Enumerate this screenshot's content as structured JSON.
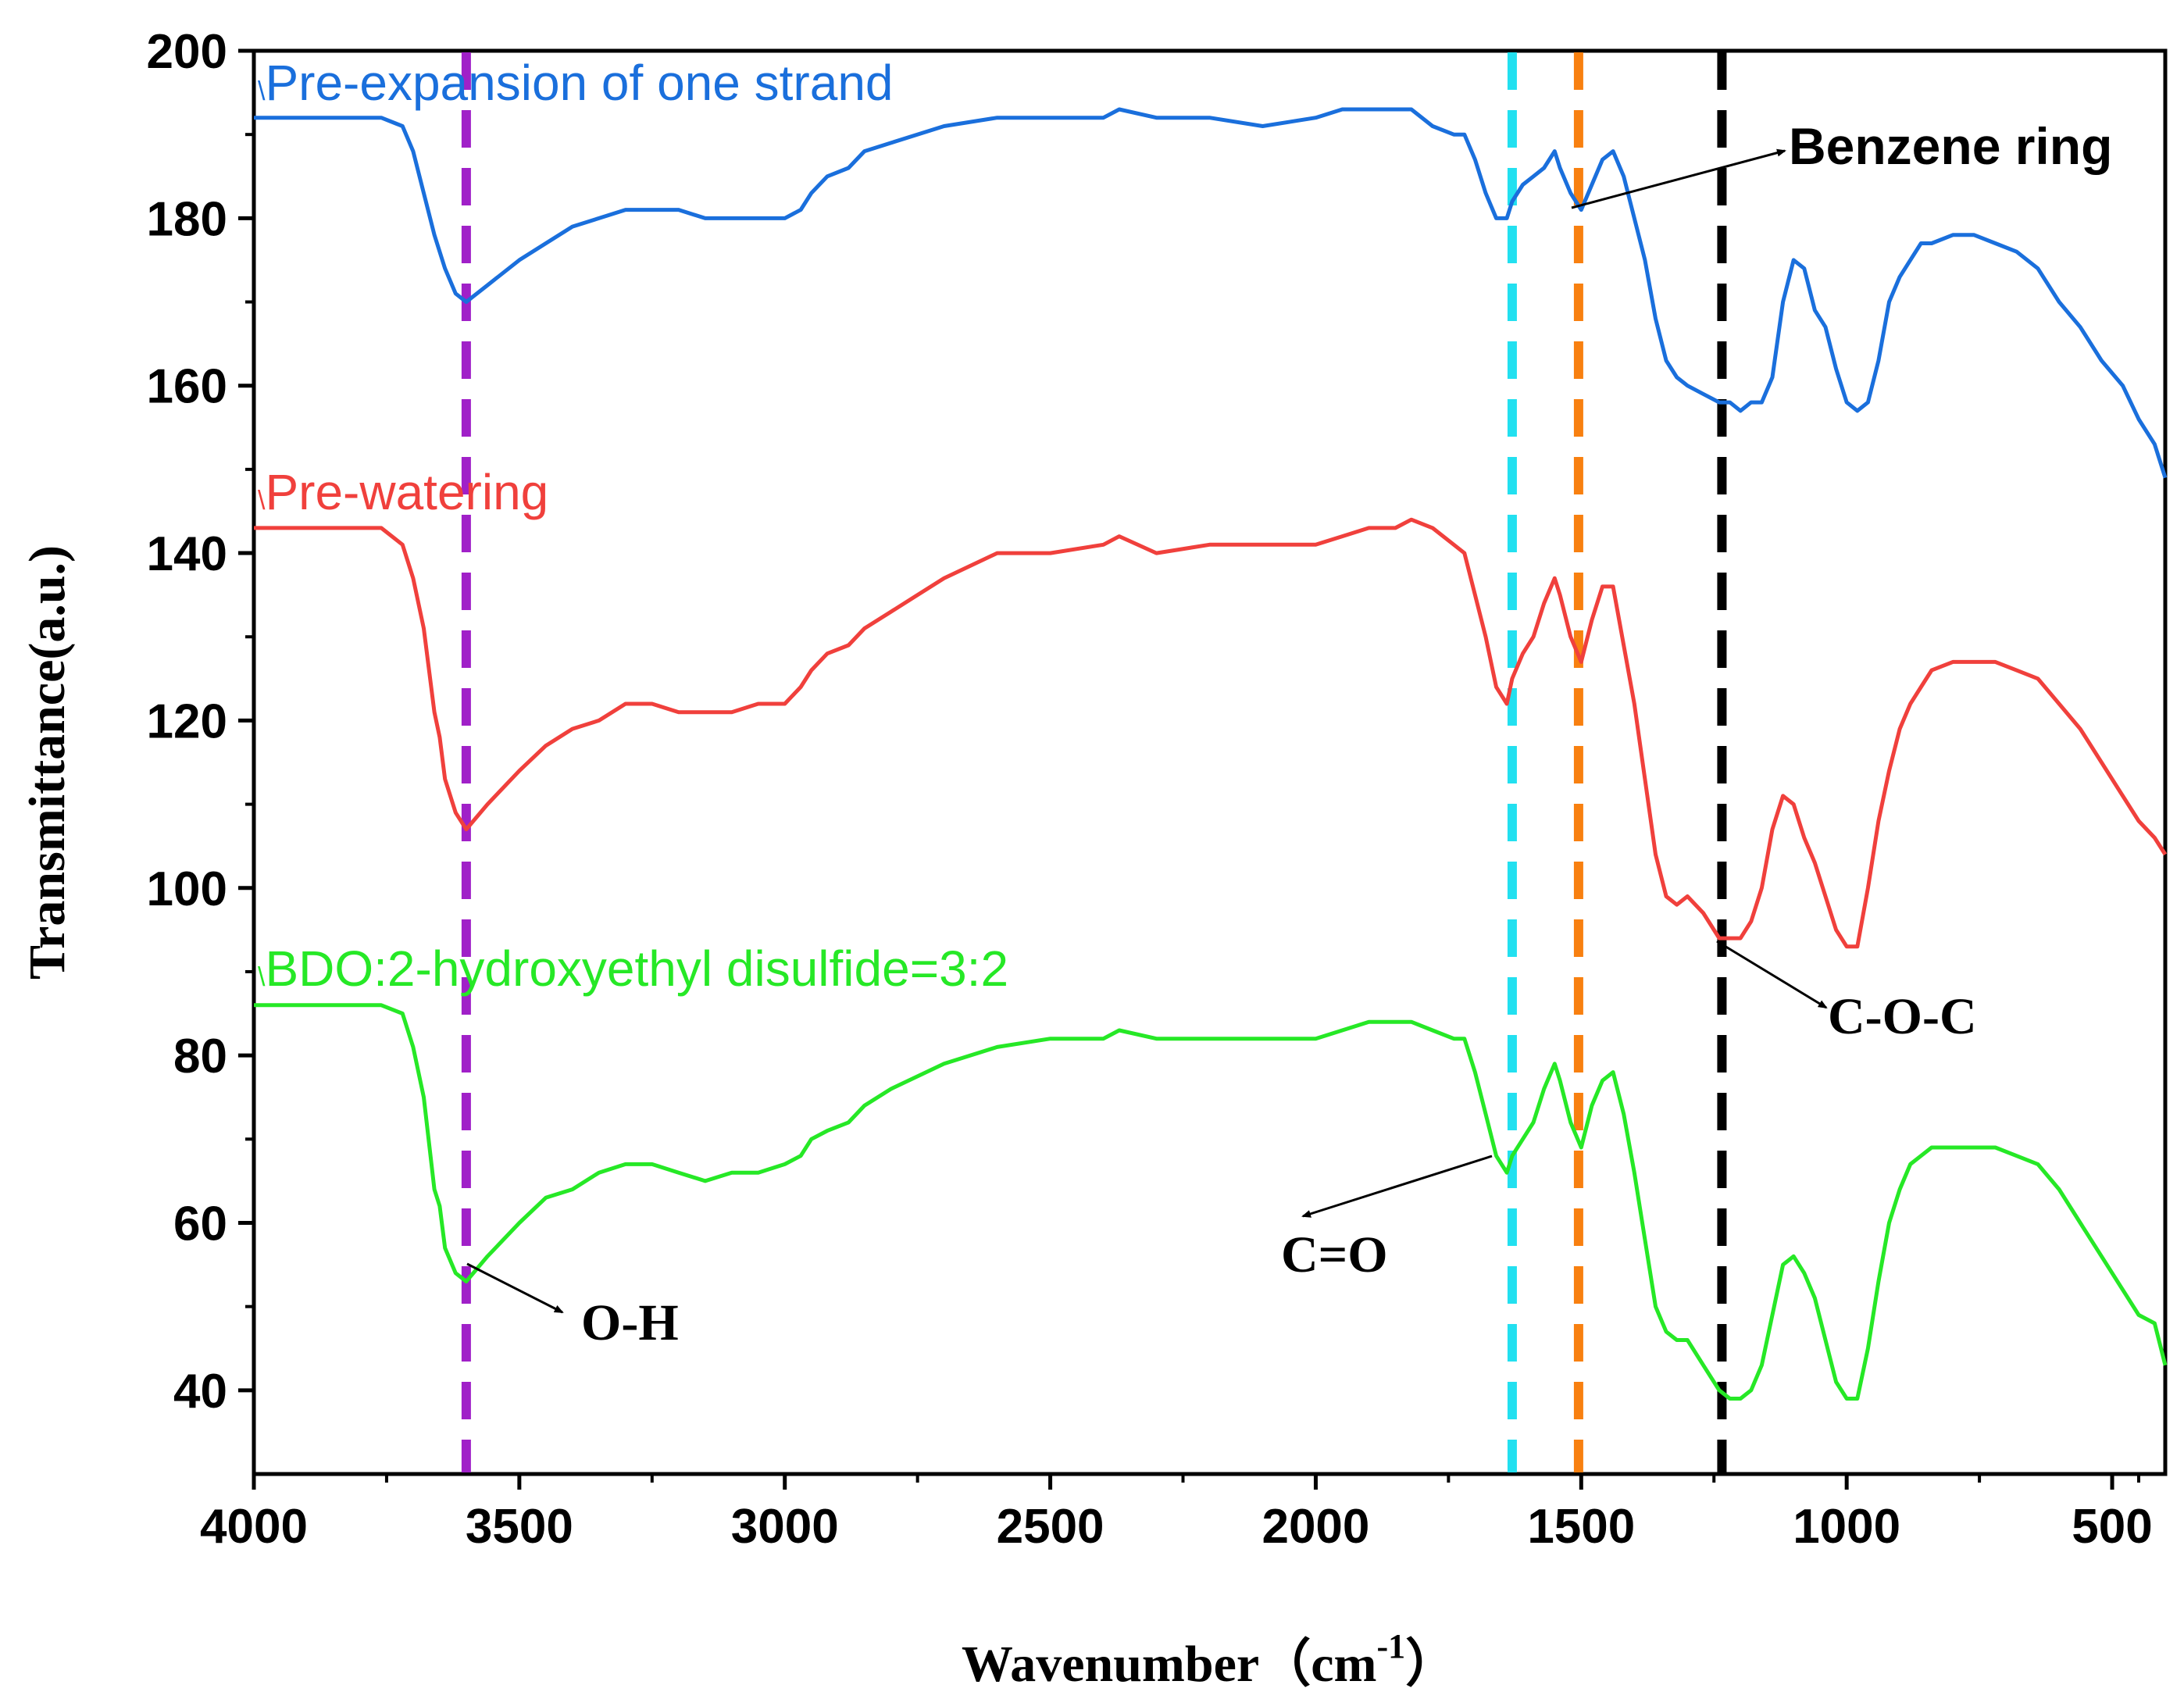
{
  "chart_data": {
    "type": "line",
    "title": "",
    "xlabel": "Wavenumber（cm",
    "xlabel_sup": "-1",
    "xlabel_close": "）",
    "ylabel": "Transmittance(a.u.)",
    "xlim": [
      4000,
      400
    ],
    "ylim": [
      30,
      200
    ],
    "x_ticks": [
      4000,
      3500,
      3000,
      2500,
      2000,
      1500,
      1000,
      500
    ],
    "x_tick_labels": [
      "4000",
      "3500",
      "3000",
      "2500",
      "2000",
      "1500",
      "1000",
      "500"
    ],
    "y_ticks": [
      40,
      60,
      80,
      100,
      120,
      140,
      160,
      180,
      200
    ],
    "y_tick_labels": [
      "40",
      "60",
      "80",
      "100",
      "120",
      "140",
      "160",
      "180",
      "200"
    ],
    "grid": false,
    "series": [
      {
        "name": "Pre-expansion of one strand",
        "color": "#1a6fdc",
        "x": [
          4000,
          3900,
          3800,
          3760,
          3720,
          3700,
          3680,
          3660,
          3650,
          3640,
          3620,
          3600,
          3560,
          3500,
          3450,
          3400,
          3350,
          3300,
          3250,
          3200,
          3150,
          3100,
          3050,
          3000,
          2970,
          2950,
          2920,
          2880,
          2850,
          2800,
          2700,
          2600,
          2500,
          2400,
          2370,
          2300,
          2200,
          2100,
          2000,
          1950,
          1900,
          1850,
          1820,
          1780,
          1740,
          1720,
          1700,
          1680,
          1660,
          1640,
          1630,
          1610,
          1590,
          1570,
          1550,
          1540,
          1520,
          1500,
          1480,
          1460,
          1440,
          1420,
          1400,
          1380,
          1360,
          1340,
          1320,
          1300,
          1270,
          1240,
          1220,
          1200,
          1180,
          1160,
          1140,
          1120,
          1100,
          1080,
          1060,
          1040,
          1020,
          1000,
          980,
          960,
          940,
          920,
          900,
          880,
          860,
          840,
          800,
          760,
          720,
          680,
          640,
          600,
          560,
          520,
          480,
          450,
          420,
          400
        ],
        "y": [
          192,
          192,
          192,
          192,
          191,
          188,
          183,
          178,
          176,
          174,
          171,
          170,
          172,
          175,
          177,
          179,
          180,
          181,
          181,
          181,
          180,
          180,
          180,
          180,
          181,
          183,
          185,
          186,
          188,
          189,
          191,
          192,
          192,
          192,
          193,
          192,
          192,
          191,
          192,
          193,
          193,
          193,
          193,
          191,
          190,
          190,
          187,
          183,
          180,
          180,
          182,
          184,
          185,
          186,
          188,
          186,
          183,
          181,
          184,
          187,
          188,
          185,
          180,
          175,
          168,
          163,
          161,
          160,
          159,
          158,
          158,
          157,
          158,
          158,
          161,
          170,
          175,
          174,
          169,
          167,
          162,
          158,
          157,
          158,
          163,
          170,
          173,
          175,
          177,
          177,
          178,
          178,
          177,
          176,
          174,
          170,
          167,
          163,
          160,
          156,
          153,
          149
        ]
      },
      {
        "name": "Pre-watering",
        "color": "#f0403c",
        "x": [
          4000,
          3900,
          3800,
          3760,
          3720,
          3700,
          3680,
          3660,
          3650,
          3640,
          3620,
          3600,
          3560,
          3500,
          3450,
          3400,
          3350,
          3300,
          3250,
          3200,
          3150,
          3100,
          3050,
          3000,
          2970,
          2950,
          2920,
          2880,
          2850,
          2800,
          2700,
          2600,
          2500,
          2400,
          2370,
          2300,
          2200,
          2100,
          2000,
          1950,
          1900,
          1850,
          1820,
          1780,
          1740,
          1720,
          1700,
          1680,
          1660,
          1640,
          1630,
          1610,
          1590,
          1570,
          1550,
          1540,
          1520,
          1500,
          1480,
          1460,
          1440,
          1420,
          1400,
          1380,
          1360,
          1340,
          1320,
          1300,
          1270,
          1240,
          1220,
          1200,
          1180,
          1160,
          1140,
          1120,
          1100,
          1080,
          1060,
          1040,
          1020,
          1000,
          980,
          960,
          940,
          920,
          900,
          880,
          860,
          840,
          800,
          760,
          720,
          680,
          640,
          600,
          560,
          520,
          480,
          450,
          420,
          400
        ],
        "y": [
          143,
          143,
          143,
          143,
          141,
          137,
          131,
          121,
          118,
          113,
          109,
          107,
          110,
          114,
          117,
          119,
          120,
          122,
          122,
          121,
          121,
          121,
          122,
          122,
          124,
          126,
          128,
          129,
          131,
          133,
          137,
          140,
          140,
          141,
          142,
          140,
          141,
          141,
          141,
          142,
          143,
          143,
          144,
          143,
          141,
          140,
          135,
          130,
          124,
          122,
          125,
          128,
          130,
          134,
          137,
          135,
          130,
          127,
          132,
          136,
          136,
          129,
          122,
          113,
          104,
          99,
          98,
          99,
          97,
          94,
          94,
          94,
          96,
          100,
          107,
          111,
          110,
          106,
          103,
          99,
          95,
          93,
          93,
          100,
          108,
          114,
          119,
          122,
          124,
          126,
          127,
          127,
          127,
          126,
          125,
          122,
          119,
          115,
          111,
          108,
          106,
          104
        ]
      },
      {
        "name": "BDO:2-hydroxyethyl disulfide=3:2",
        "color": "#26e826",
        "x": [
          4000,
          3900,
          3800,
          3760,
          3720,
          3700,
          3680,
          3660,
          3650,
          3640,
          3620,
          3600,
          3560,
          3500,
          3450,
          3400,
          3350,
          3300,
          3250,
          3200,
          3150,
          3100,
          3050,
          3000,
          2970,
          2950,
          2920,
          2880,
          2850,
          2800,
          2700,
          2600,
          2500,
          2400,
          2370,
          2300,
          2200,
          2100,
          2000,
          1950,
          1900,
          1850,
          1820,
          1780,
          1740,
          1720,
          1700,
          1680,
          1660,
          1640,
          1630,
          1610,
          1590,
          1570,
          1550,
          1540,
          1520,
          1500,
          1480,
          1460,
          1440,
          1420,
          1400,
          1380,
          1360,
          1340,
          1320,
          1300,
          1270,
          1240,
          1220,
          1200,
          1180,
          1160,
          1140,
          1120,
          1100,
          1080,
          1060,
          1040,
          1020,
          1000,
          980,
          960,
          940,
          920,
          900,
          880,
          860,
          840,
          800,
          760,
          720,
          680,
          640,
          600,
          560,
          520,
          480,
          450,
          420,
          400
        ],
        "y": [
          86,
          86,
          86,
          86,
          85,
          81,
          75,
          64,
          62,
          57,
          54,
          53,
          56,
          60,
          63,
          64,
          66,
          67,
          67,
          66,
          65,
          66,
          66,
          67,
          68,
          70,
          71,
          72,
          74,
          76,
          79,
          81,
          82,
          82,
          83,
          82,
          82,
          82,
          82,
          83,
          84,
          84,
          84,
          83,
          82,
          82,
          78,
          73,
          68,
          66,
          68,
          70,
          72,
          76,
          79,
          77,
          72,
          69,
          74,
          77,
          78,
          73,
          66,
          58,
          50,
          47,
          46,
          46,
          43,
          40,
          39,
          39,
          40,
          43,
          49,
          55,
          56,
          54,
          51,
          46,
          41,
          39,
          39,
          45,
          53,
          60,
          64,
          67,
          68,
          69,
          69,
          69,
          69,
          68,
          67,
          64,
          60,
          56,
          52,
          49,
          48,
          43
        ]
      }
    ],
    "reference_lines": [
      {
        "x": 3600,
        "color": "#a020c8",
        "name": "O-H"
      },
      {
        "x": 1630,
        "color": "#22e0f0",
        "name": "C=O"
      },
      {
        "x": 1505,
        "color": "#f88010",
        "name": "Benzene ring"
      },
      {
        "x": 1235,
        "color": "#000000",
        "name": "C-O-C"
      }
    ],
    "annotations": [
      {
        "text": "Benzene ring",
        "x": 1500,
        "y": 181
      },
      {
        "text": "C-O-C",
        "x": 1235,
        "y": 93
      },
      {
        "text": "C=O",
        "x": 1640,
        "y": 68
      },
      {
        "text": "O-H",
        "x": 3600,
        "y": 54
      }
    ]
  }
}
